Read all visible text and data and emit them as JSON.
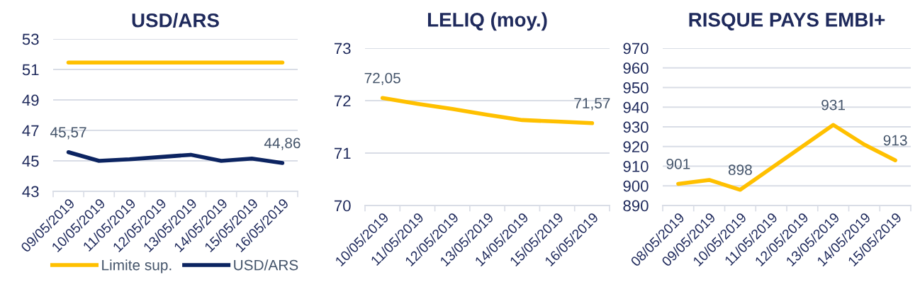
{
  "chart_data": [
    {
      "type": "line",
      "title": "USD/ARS",
      "categories": [
        "09/05/2019",
        "10/05/2019",
        "11/05/2019",
        "12/05/2019",
        "13/05/2019",
        "14/05/2019",
        "15/05/2019",
        "16/05/2019"
      ],
      "series": [
        {
          "name": "Limite sup.",
          "color": "#ffc000",
          "values": [
            51.45,
            51.45,
            51.45,
            51.45,
            51.45,
            51.45,
            51.45,
            51.45
          ]
        },
        {
          "name": "USD/ARS",
          "color": "#0c2461",
          "values": [
            45.57,
            45.0,
            45.1,
            45.25,
            45.4,
            45.0,
            45.15,
            44.86
          ],
          "value_labels": [
            "45,57",
            null,
            null,
            null,
            null,
            null,
            null,
            "44,86"
          ]
        }
      ],
      "ylim": [
        43,
        53
      ],
      "yticks": [
        43,
        45,
        47,
        49,
        51,
        53
      ],
      "grid": "y",
      "legend": "bottom",
      "marker": "none",
      "line_style": "solid"
    },
    {
      "type": "line",
      "title": "LELIQ (moy.)",
      "categories": [
        "10/05/2019",
        "11/05/2019",
        "12/05/2019",
        "13/05/2019",
        "14/05/2019",
        "15/05/2019",
        "16/05/2019"
      ],
      "series": [
        {
          "color": "#ffc000",
          "values": [
            72.05,
            71.94,
            71.84,
            71.73,
            71.63,
            71.6,
            71.57
          ],
          "value_labels": [
            "72,05",
            null,
            null,
            null,
            null,
            null,
            "71,57"
          ]
        }
      ],
      "ylim": [
        70,
        73
      ],
      "yticks": [
        70,
        71,
        72,
        73
      ],
      "grid": "y",
      "legend": false,
      "marker": "none",
      "line_style": "solid"
    },
    {
      "type": "line",
      "title": "RISQUE PAYS EMBI+",
      "categories": [
        "08/05/2019",
        "09/05/2019",
        "10/05/2019",
        "11/05/2019",
        "12/05/2019",
        "13/05/2019",
        "14/05/2019",
        "15/05/2019"
      ],
      "series": [
        {
          "color": "#ffc000",
          "values": [
            901,
            903,
            898,
            909,
            920,
            931,
            921,
            913
          ],
          "value_labels": [
            "901",
            null,
            "898",
            null,
            null,
            "931",
            null,
            "913"
          ]
        }
      ],
      "ylim": [
        890,
        970
      ],
      "yticks": [
        890,
        900,
        910,
        920,
        930,
        940,
        950,
        960,
        970
      ],
      "grid": "y",
      "legend": false,
      "marker": "none",
      "line_style": "solid"
    }
  ]
}
